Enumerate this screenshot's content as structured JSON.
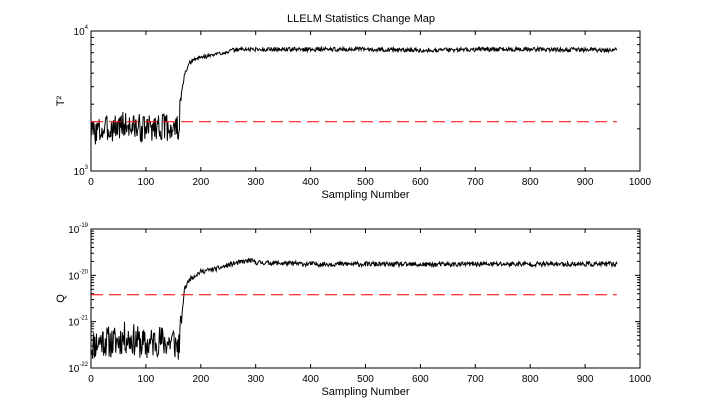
{
  "chart_data": [
    {
      "type": "line",
      "title": "LLELM Statistics Change Map",
      "xlabel": "Sampling Number",
      "ylabel": "T²",
      "xlim": [
        0,
        1000
      ],
      "ylim": [
        1000,
        10000
      ],
      "yscale": "log",
      "x_ticks": [
        0,
        100,
        200,
        300,
        400,
        500,
        600,
        700,
        800,
        900,
        1000
      ],
      "y_ticks": [
        {
          "value": 1000,
          "base": "10",
          "exp": "3"
        },
        {
          "value": 10000,
          "base": "10",
          "exp": "4"
        }
      ],
      "grid": false,
      "series": [
        {
          "color": "#000000",
          "style": "solid",
          "noise": 0.1,
          "seed": 3,
          "x": [
            0,
            20,
            40,
            60,
            80,
            100,
            120,
            140,
            155,
            160,
            165,
            170,
            180,
            190,
            200,
            210,
            220,
            240,
            260,
            270,
            300,
            400,
            500,
            600,
            700,
            800,
            900,
            950,
            958
          ],
          "y": [
            1900,
            1950,
            2050,
            2150,
            2050,
            2000,
            2100,
            2050,
            2000,
            2050,
            3600,
            4800,
            5900,
            6300,
            6500,
            6600,
            6700,
            7000,
            7300,
            7400,
            7400,
            7400,
            7400,
            7300,
            7400,
            7400,
            7350,
            7300,
            7400
          ]
        },
        {
          "color": "#ff0000",
          "style": "dashed",
          "x": [
            0,
            958
          ],
          "y": [
            2250,
            2250
          ]
        }
      ]
    },
    {
      "type": "line",
      "title": "",
      "xlabel": "Sampling Number",
      "ylabel": "Q",
      "xlim": [
        0,
        1000
      ],
      "ylim": [
        1e-22,
        1e-19
      ],
      "yscale": "log",
      "x_ticks": [
        0,
        100,
        200,
        300,
        400,
        500,
        600,
        700,
        800,
        900,
        1000
      ],
      "y_ticks": [
        {
          "value": 1e-22,
          "base": "10",
          "exp": "-22"
        },
        {
          "value": 1e-21,
          "base": "10",
          "exp": "-21"
        },
        {
          "value": 1e-20,
          "base": "10",
          "exp": "-20"
        },
        {
          "value": 1e-19,
          "base": "10",
          "exp": "-19"
        }
      ],
      "grid": false,
      "series": [
        {
          "color": "#000000",
          "style": "solid",
          "noise": 0.35,
          "seed": 11,
          "x": [
            0,
            20,
            40,
            60,
            80,
            100,
            120,
            140,
            150,
            155,
            160,
            165,
            170,
            180,
            200,
            230,
            260,
            290,
            300,
            400,
            500,
            600,
            700,
            800,
            900,
            958
          ],
          "y": [
            3e-22,
            4e-22,
            3.5e-22,
            4.5e-22,
            4e-22,
            3e-22,
            4e-22,
            3.5e-22,
            4e-22,
            3e-22,
            3e-22,
            1e-21,
            5e-21,
            8.5e-21,
            1.2e-20,
            1.4e-20,
            1.8e-20,
            2.1e-20,
            1.9e-20,
            1.75e-20,
            1.75e-20,
            1.7e-20,
            1.75e-20,
            1.75e-20,
            1.75e-20,
            1.75e-20
          ]
        },
        {
          "color": "#ff0000",
          "style": "dashed",
          "x": [
            0,
            958
          ],
          "y": [
            3.8e-21,
            3.8e-21
          ]
        }
      ]
    }
  ]
}
